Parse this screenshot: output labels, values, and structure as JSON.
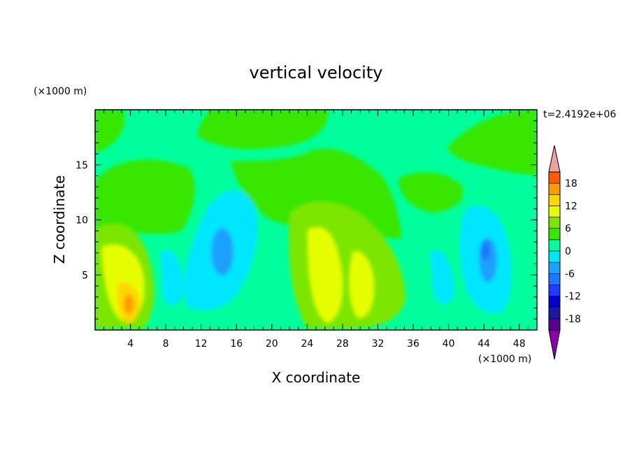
{
  "chart_data": {
    "type": "heatmap",
    "title": "vertical velocity",
    "xlabel": "X coordinate",
    "ylabel": "Z coordinate",
    "x_unit_label": "(×1000 m)",
    "y_unit_label": "(×1000 m)",
    "time_label": "t=2.4192e+06",
    "xlim": [
      0,
      50
    ],
    "ylim": [
      0,
      20
    ],
    "x_ticks": [
      "4",
      "8",
      "12",
      "16",
      "20",
      "24",
      "28",
      "32",
      "36",
      "40",
      "44",
      "48"
    ],
    "y_ticks": [
      "5",
      "10",
      "15"
    ],
    "colorbar": {
      "labels": [
        "18",
        "12",
        "6",
        "0",
        "-6",
        "-12",
        "-18"
      ],
      "levels": [
        -21,
        -18,
        -15,
        -12,
        -9,
        -6,
        -3,
        0,
        3,
        6,
        9,
        12,
        15,
        18,
        21
      ],
      "colors": [
        "#5a0090",
        "#1a1aa0",
        "#0000cd",
        "#1e3cff",
        "#1e78ff",
        "#1ea0ff",
        "#00e6ff",
        "#00ff9c",
        "#39e600",
        "#7ce600",
        "#e6ff00",
        "#ffd700",
        "#ff9b00",
        "#ff5a00",
        "#ff1e1e",
        "#f2a0a0"
      ],
      "under_color": "#8a00a8",
      "over_color": "#f2a0a0"
    },
    "features": [
      {
        "x": 4,
        "z": 3,
        "value": 13,
        "kind": "updraft"
      },
      {
        "x": 14.5,
        "z": 8,
        "value": -10,
        "kind": "downdraft"
      },
      {
        "x": 26,
        "z": 6,
        "value": 8,
        "kind": "updraft"
      },
      {
        "x": 30,
        "z": 5,
        "value": 7,
        "kind": "updraft"
      },
      {
        "x": 44.5,
        "z": 7,
        "value": -9,
        "kind": "downdraft"
      }
    ]
  }
}
